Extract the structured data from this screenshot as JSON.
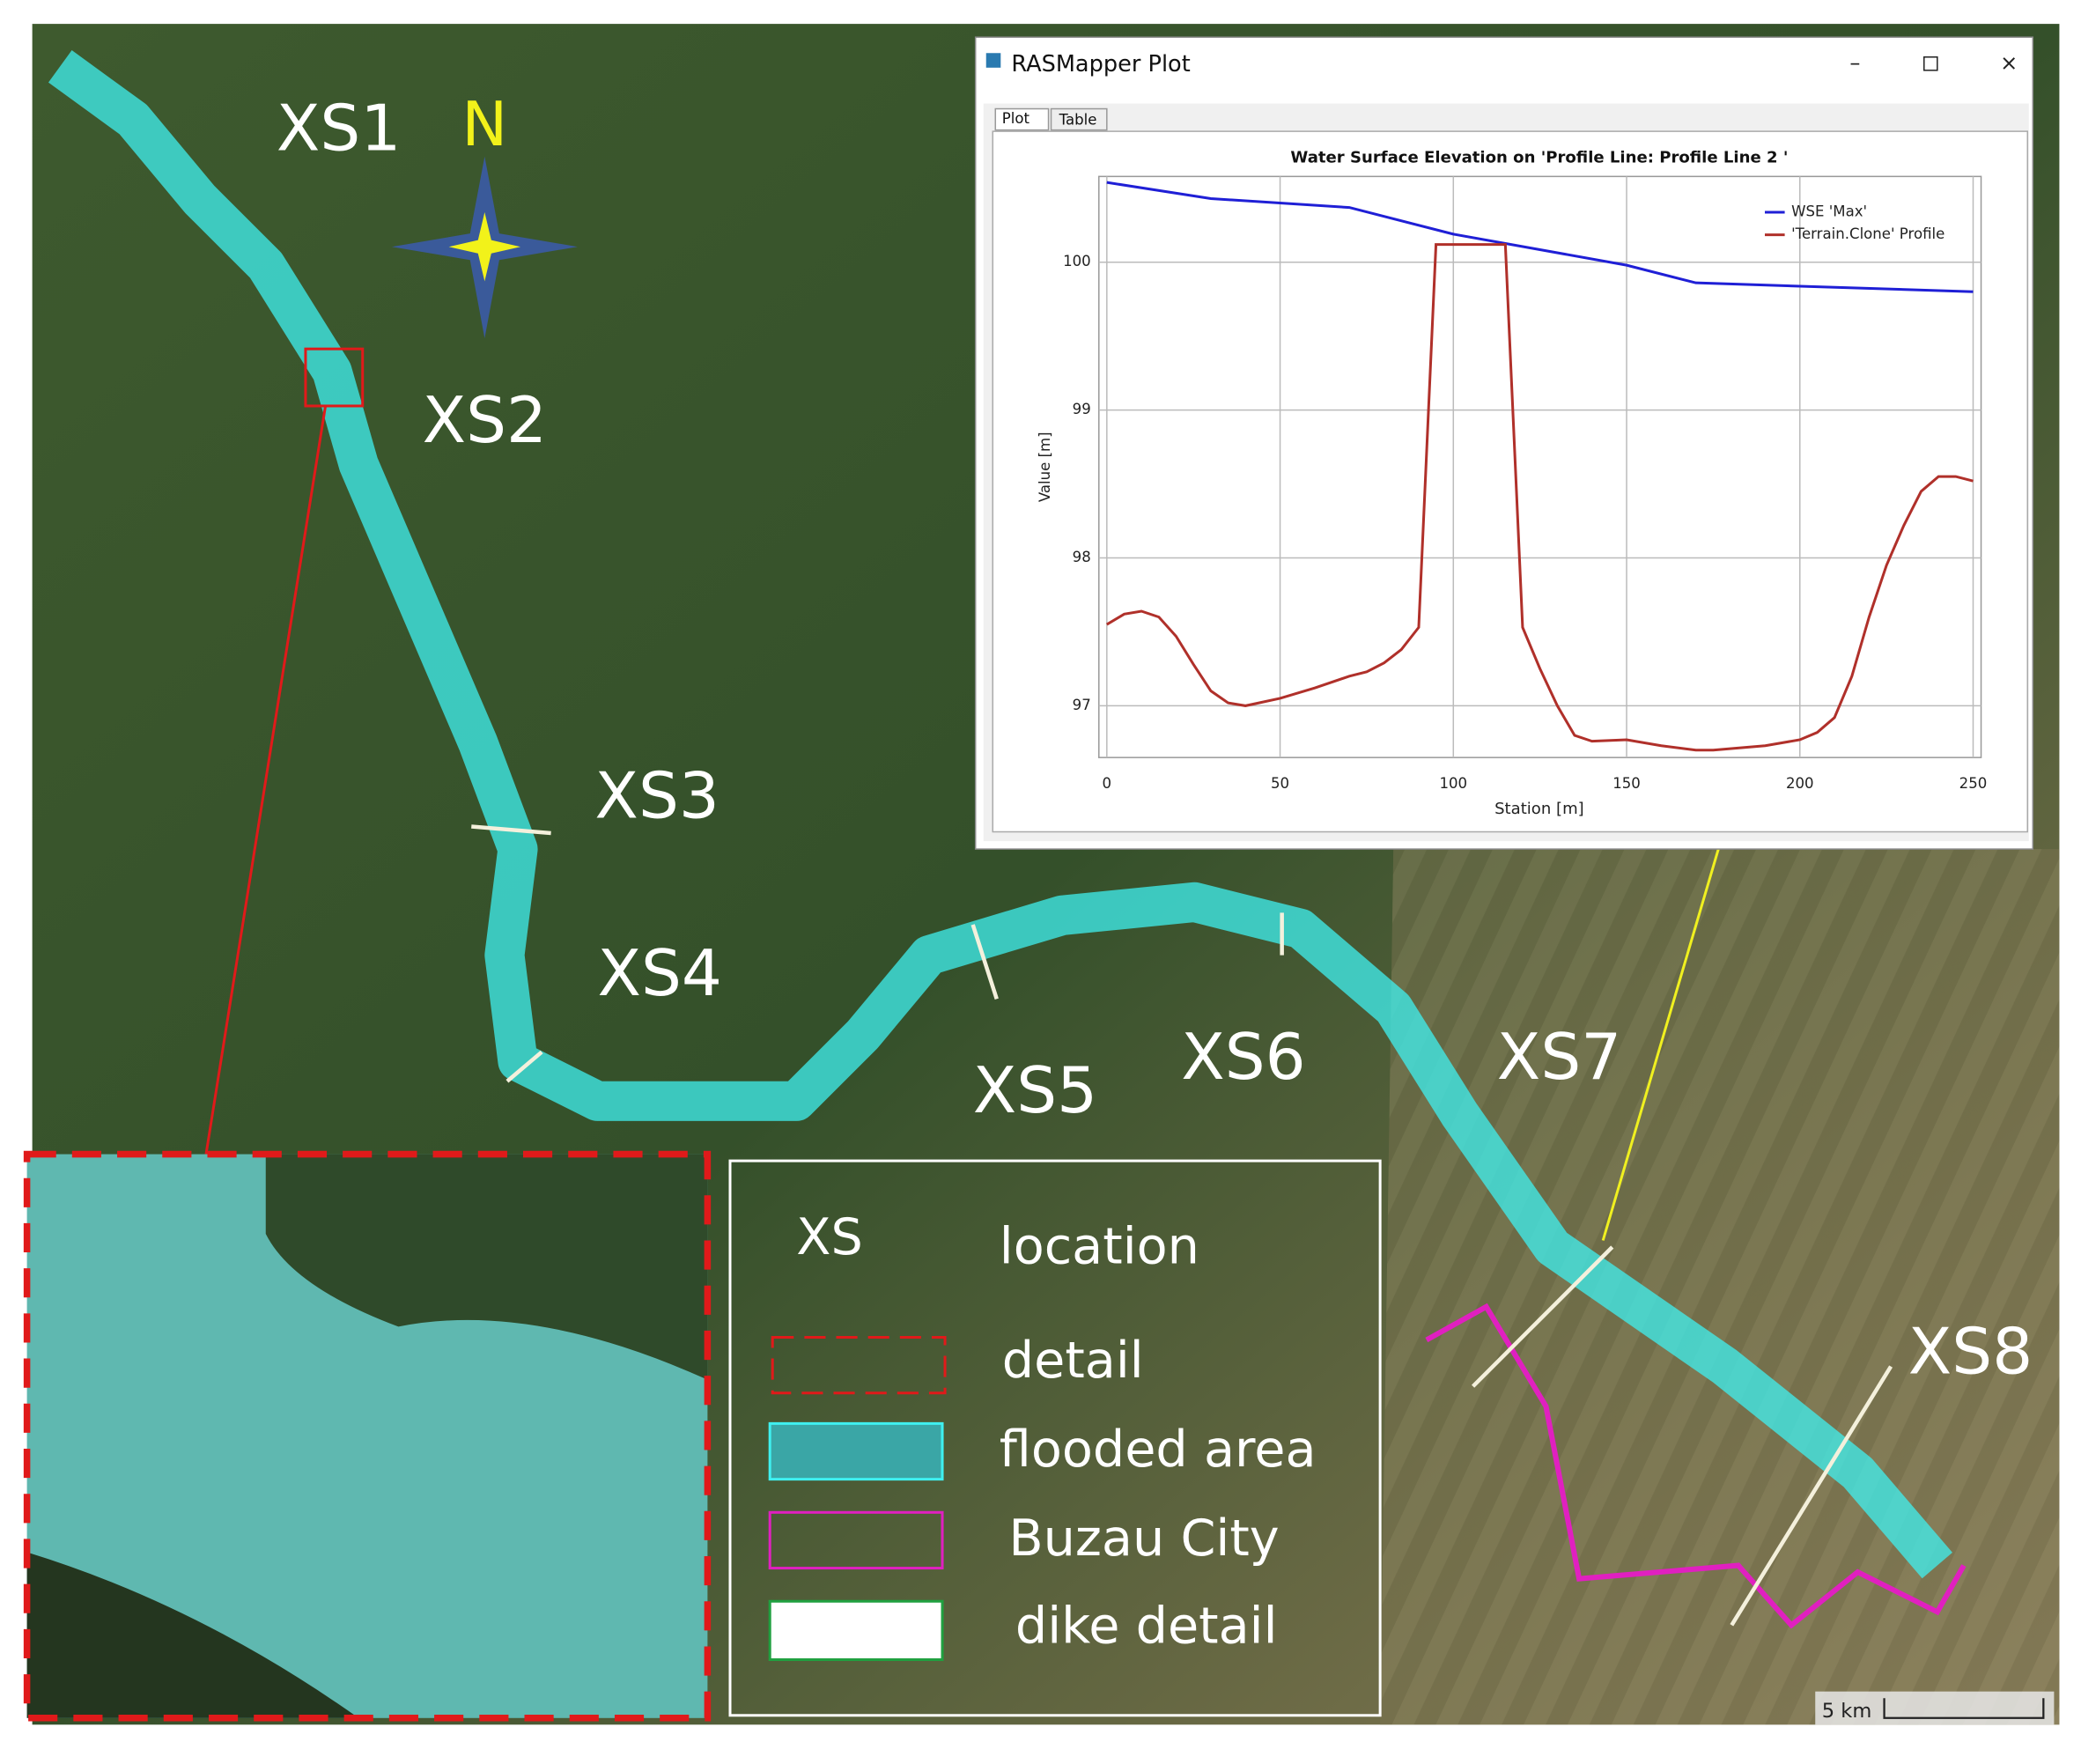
{
  "map": {
    "labels": [
      "XS1",
      "XS2",
      "XS3",
      "XS4",
      "XS5",
      "XS6",
      "XS7",
      "XS8"
    ],
    "north": "N",
    "scale_bar": "5 km"
  },
  "legend": {
    "title": "XS",
    "items": [
      "location",
      "detail",
      "flooded area",
      "Buzau City",
      "dike detail"
    ]
  },
  "window": {
    "title": "RASMapper Plot",
    "tabs": [
      "Plot",
      "Table"
    ]
  },
  "chart_data": {
    "type": "line",
    "title": "Water Surface Elevation on 'Profile Line: Profile Line 2 '",
    "xlabel": "Station [m]",
    "ylabel": "Value [m]",
    "xlim": [
      0,
      250
    ],
    "ylim": [
      96.65,
      100.58
    ],
    "xticks": [
      0,
      50,
      100,
      150,
      200,
      250
    ],
    "yticks": [
      97,
      98,
      99,
      100
    ],
    "grid": true,
    "series": [
      {
        "name": "WSE 'Max'",
        "color": "#1f1fd6",
        "x": [
          0,
          30,
          70,
          100,
          150,
          170,
          250
        ],
        "values": [
          100.54,
          100.43,
          100.37,
          100.19,
          99.98,
          99.86,
          99.8
        ]
      },
      {
        "name": "'Terrain.Clone' Profile",
        "color": "#b0302a",
        "x": [
          0,
          5,
          10,
          15,
          20,
          25,
          30,
          35,
          40,
          50,
          60,
          70,
          75,
          80,
          85,
          90,
          95,
          115,
          120,
          125,
          130,
          135,
          140,
          150,
          160,
          170,
          175,
          190,
          200,
          205,
          210,
          215,
          220,
          225,
          230,
          235,
          240,
          245,
          250
        ],
        "values": [
          97.55,
          97.62,
          97.64,
          97.6,
          97.47,
          97.28,
          97.1,
          97.02,
          97.0,
          97.05,
          97.12,
          97.2,
          97.23,
          97.29,
          97.38,
          97.53,
          100.12,
          100.12,
          97.53,
          97.25,
          97.0,
          96.8,
          96.76,
          96.77,
          96.73,
          96.7,
          96.7,
          96.73,
          96.77,
          96.82,
          96.92,
          97.2,
          97.6,
          97.95,
          98.22,
          98.45,
          98.55,
          98.55,
          98.52
        ]
      }
    ]
  }
}
